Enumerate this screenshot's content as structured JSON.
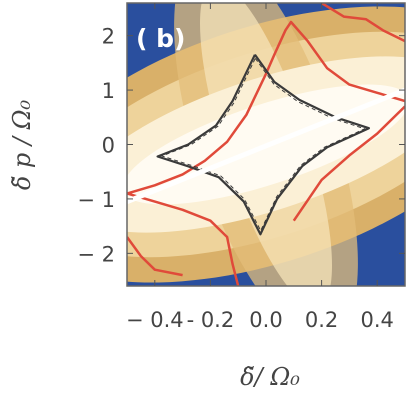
{
  "chart_data": {
    "type": "heatmap",
    "panel_label": "( b)",
    "xlabel": "δ̃/ Ω₀",
    "ylabel": "δ̃ p / Ω₀",
    "xlim": [
      -0.5,
      0.5
    ],
    "ylim": [
      -2.6,
      2.6
    ],
    "x_ticks": [
      {
        "value": -0.4,
        "label": "− 0.4"
      },
      {
        "value": -0.2,
        "label": "- 0.2"
      },
      {
        "value": 0.0,
        "label": "0.0"
      },
      {
        "value": 0.2,
        "label": "0.2"
      },
      {
        "value": 0.4,
        "label": "0.4"
      }
    ],
    "y_ticks": [
      {
        "value": 2,
        "label": "2"
      },
      {
        "value": 1,
        "label": "1"
      },
      {
        "value": 0,
        "label": "0"
      },
      {
        "value": -1,
        "label": "− 1"
      },
      {
        "value": -2,
        "label": "− 2"
      }
    ],
    "colormap": {
      "low": "#2a4f9e",
      "mid": "#e9c78a",
      "high": "#fffbf2"
    },
    "white_line": {
      "color": "#ffffff",
      "points": [
        [
          -0.5,
          -1.05
        ],
        [
          0.5,
          1.0
        ]
      ]
    },
    "black_contour": {
      "color": "#3a3a3a",
      "points": [
        [
          -0.04,
          1.65
        ],
        [
          0.03,
          1.15
        ],
        [
          0.12,
          0.82
        ],
        [
          0.25,
          0.5
        ],
        [
          0.37,
          0.3
        ],
        [
          0.22,
          -0.05
        ],
        [
          0.13,
          -0.4
        ],
        [
          0.04,
          -1.0
        ],
        [
          -0.02,
          -1.65
        ],
        [
          -0.08,
          -1.05
        ],
        [
          -0.17,
          -0.6
        ],
        [
          -0.28,
          -0.4
        ],
        [
          -0.39,
          -0.22
        ],
        [
          -0.28,
          0.0
        ],
        [
          -0.18,
          0.35
        ],
        [
          -0.12,
          0.8
        ],
        [
          -0.04,
          1.65
        ]
      ]
    },
    "red_contour_inner": {
      "color": "#e04a3a",
      "points": [
        [
          -0.5,
          -0.9
        ],
        [
          -0.4,
          -0.75
        ],
        [
          -0.3,
          -0.55
        ],
        [
          -0.22,
          -0.3
        ],
        [
          -0.14,
          0.05
        ],
        [
          -0.07,
          0.55
        ],
        [
          0.0,
          1.3
        ],
        [
          0.03,
          1.65
        ],
        [
          0.07,
          2.1
        ],
        [
          0.09,
          2.25
        ],
        [
          0.15,
          1.9
        ],
        [
          0.22,
          1.4
        ],
        [
          0.3,
          1.1
        ],
        [
          0.4,
          0.95
        ],
        [
          0.5,
          0.8
        ]
      ]
    },
    "red_contour_outer": {
      "color": "#e04a3a",
      "points": [
        [
          -0.5,
          -0.9
        ],
        [
          -0.4,
          -1.05
        ],
        [
          -0.3,
          -1.2
        ],
        [
          -0.2,
          -1.4
        ],
        [
          -0.14,
          -1.7
        ],
        [
          -0.12,
          -2.2
        ],
        [
          -0.1,
          -2.6
        ]
      ]
    },
    "red_contour_right": {
      "color": "#e04a3a",
      "points": [
        [
          0.1,
          -1.4
        ],
        [
          0.2,
          -0.65
        ],
        [
          0.3,
          -0.2
        ],
        [
          0.4,
          0.2
        ],
        [
          0.5,
          0.7
        ]
      ]
    },
    "red_contour_topright": {
      "color": "#e04a3a",
      "points": [
        [
          0.2,
          2.6
        ],
        [
          0.28,
          2.35
        ],
        [
          0.36,
          2.3
        ],
        [
          0.42,
          2.1
        ],
        [
          0.5,
          1.9
        ]
      ]
    },
    "red_contour_bottomleft": {
      "color": "#e04a3a",
      "points": [
        [
          -0.5,
          -1.7
        ],
        [
          -0.45,
          -2.05
        ],
        [
          -0.4,
          -2.3
        ],
        [
          -0.3,
          -2.4
        ]
      ]
    },
    "grid": false
  }
}
